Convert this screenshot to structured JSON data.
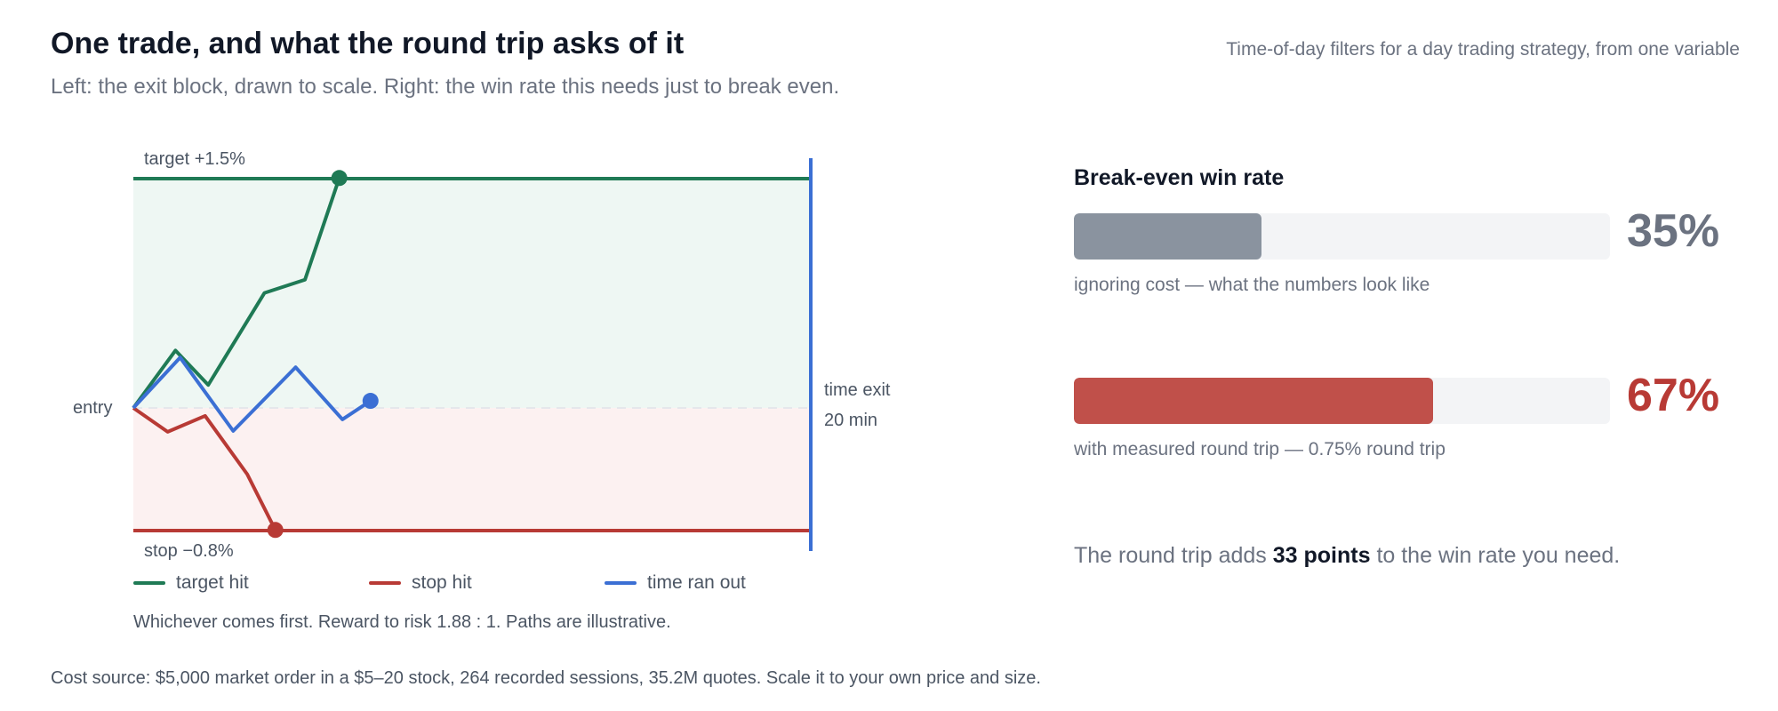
{
  "header": {
    "title": "One trade, and what the round trip asks of it",
    "subtitle": "Left: the exit block, drawn to scale. Right: the win rate this needs just to break even.",
    "kicker": "Time-of-day filters for a day trading strategy, from one variable"
  },
  "diagram": {
    "target_label": "target +1.5%",
    "stop_label": "stop −0.8%",
    "entry_label": "entry",
    "time_exit_label": "time exit",
    "time_exit_minutes": "20 min",
    "legend": [
      {
        "label": "target hit",
        "color": "#1f7a55"
      },
      {
        "label": "stop hit",
        "color": "#b83a35"
      },
      {
        "label": "time ran out",
        "color": "#3b6fd4"
      }
    ],
    "caption": "Whichever comes first. Reward to risk 1.88 : 1. Paths are illustrative.",
    "paths": {
      "target_hit": [
        [
          0,
          0
        ],
        [
          1.35,
          0.65
        ],
        [
          2.4,
          0.26
        ],
        [
          4.2,
          1.3
        ],
        [
          5.5,
          1.45
        ],
        [
          6.6,
          2.6
        ]
      ],
      "stop_hit": [
        [
          0,
          0
        ],
        [
          1.1,
          -0.27
        ],
        [
          2.3,
          -0.09
        ],
        [
          3.65,
          -0.75
        ],
        [
          4.55,
          -1.38
        ]
      ],
      "time_ran_out": [
        [
          0,
          0
        ],
        [
          1.5,
          0.57
        ],
        [
          3.2,
          -0.26
        ],
        [
          5.2,
          0.46
        ],
        [
          6.7,
          -0.13
        ],
        [
          7.6,
          0.08
        ]
      ]
    }
  },
  "footnote": "Cost source: $5,000 market order in a $5–20 stock, 264 recorded sessions, 35.2M quotes. Scale it to your own price and size.",
  "panel": {
    "title": "Break-even win rate",
    "bars": [
      {
        "value": 35,
        "pct_label": "35%",
        "note": "ignoring cost — what the numbers look like",
        "color": "#8a939f",
        "text_color": "#6b7280"
      },
      {
        "value": 67,
        "pct_label": "67%",
        "note": "with measured round trip — 0.75% round trip",
        "color": "#c0504a",
        "text_color": "#b83a35"
      }
    ],
    "summary_pre": "The round trip adds ",
    "summary_bold": "33 points",
    "summary_post": " to the win rate you need."
  }
}
